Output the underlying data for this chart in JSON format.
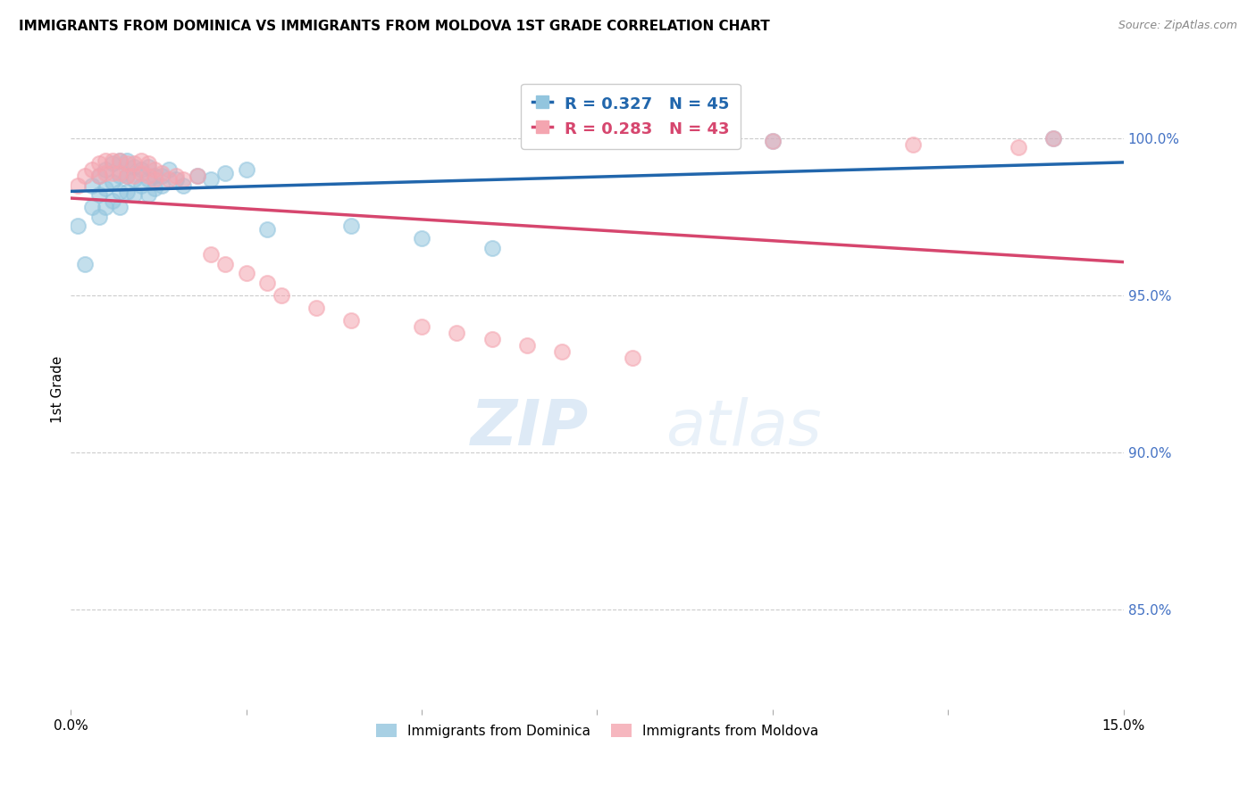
{
  "title": "IMMIGRANTS FROM DOMINICA VS IMMIGRANTS FROM MOLDOVA 1ST GRADE CORRELATION CHART",
  "source": "Source: ZipAtlas.com",
  "ylabel": "1st Grade",
  "ylabel_right_ticks": [
    "100.0%",
    "95.0%",
    "90.0%",
    "85.0%"
  ],
  "ylabel_right_values": [
    1.0,
    0.95,
    0.9,
    0.85
  ],
  "xmin": 0.0,
  "xmax": 0.15,
  "ymin": 0.818,
  "ymax": 1.022,
  "dominica_R": 0.327,
  "dominica_N": 45,
  "moldova_R": 0.283,
  "moldova_N": 43,
  "dominica_color": "#92c5de",
  "moldova_color": "#f4a5b0",
  "dominica_line_color": "#2166ac",
  "moldova_line_color": "#d6466e",
  "watermark_zip": "ZIP",
  "watermark_atlas": "atlas",
  "dominica_x": [
    0.001,
    0.002,
    0.003,
    0.003,
    0.004,
    0.004,
    0.004,
    0.005,
    0.005,
    0.005,
    0.006,
    0.006,
    0.006,
    0.007,
    0.007,
    0.007,
    0.007,
    0.008,
    0.008,
    0.008,
    0.009,
    0.009,
    0.009,
    0.01,
    0.01,
    0.011,
    0.011,
    0.011,
    0.012,
    0.012,
    0.013,
    0.013,
    0.014,
    0.015,
    0.016,
    0.018,
    0.02,
    0.022,
    0.025,
    0.028,
    0.04,
    0.05,
    0.06,
    0.1,
    0.14
  ],
  "dominica_y": [
    0.972,
    0.96,
    0.985,
    0.978,
    0.988,
    0.982,
    0.975,
    0.99,
    0.984,
    0.978,
    0.992,
    0.986,
    0.98,
    0.993,
    0.988,
    0.983,
    0.978,
    0.993,
    0.988,
    0.983,
    0.991,
    0.987,
    0.982,
    0.99,
    0.985,
    0.991,
    0.987,
    0.982,
    0.988,
    0.984,
    0.988,
    0.985,
    0.99,
    0.987,
    0.985,
    0.988,
    0.987,
    0.989,
    0.99,
    0.971,
    0.972,
    0.968,
    0.965,
    0.999,
    1.0
  ],
  "moldova_x": [
    0.001,
    0.002,
    0.003,
    0.004,
    0.004,
    0.005,
    0.005,
    0.006,
    0.006,
    0.007,
    0.007,
    0.008,
    0.008,
    0.009,
    0.009,
    0.01,
    0.01,
    0.011,
    0.011,
    0.012,
    0.012,
    0.013,
    0.014,
    0.015,
    0.016,
    0.018,
    0.02,
    0.022,
    0.025,
    0.028,
    0.03,
    0.035,
    0.04,
    0.05,
    0.055,
    0.06,
    0.065,
    0.07,
    0.08,
    0.1,
    0.12,
    0.135,
    0.14
  ],
  "moldova_y": [
    0.985,
    0.988,
    0.99,
    0.992,
    0.988,
    0.993,
    0.989,
    0.993,
    0.989,
    0.993,
    0.989,
    0.992,
    0.988,
    0.992,
    0.988,
    0.993,
    0.989,
    0.992,
    0.988,
    0.99,
    0.987,
    0.989,
    0.987,
    0.988,
    0.987,
    0.988,
    0.963,
    0.96,
    0.957,
    0.954,
    0.95,
    0.946,
    0.942,
    0.94,
    0.938,
    0.936,
    0.934,
    0.932,
    0.93,
    0.999,
    0.998,
    0.997,
    1.0
  ]
}
